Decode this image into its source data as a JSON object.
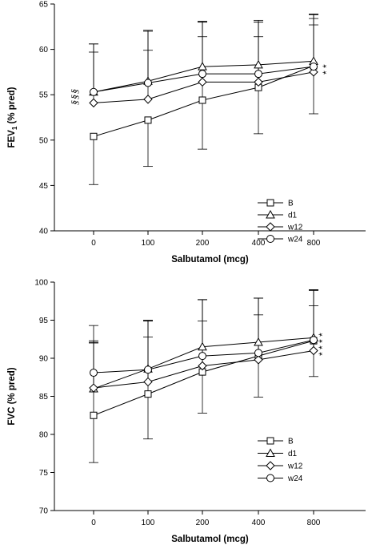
{
  "chart_data": [
    {
      "type": "line",
      "title": "",
      "xlabel": "Salbutamol (mcg)",
      "ylabel_main": "FEV",
      "ylabel_sub": "1",
      "ylabel_rest": " (% pred)",
      "categories": [
        "0",
        "100",
        "200",
        "400",
        "800"
      ],
      "ylim": [
        40,
        65
      ],
      "yticks": [
        40,
        45,
        50,
        55,
        60,
        65
      ],
      "legend_position": "lower-right",
      "series": [
        {
          "name": "B",
          "marker": "square",
          "values": [
            50.4,
            52.2,
            54.4,
            55.8,
            58.2
          ],
          "err_up": [
            0,
            0,
            8.6,
            7.2,
            5.2
          ],
          "err_down": [
            5.3,
            5.1,
            5.4,
            5.1,
            5.3
          ]
        },
        {
          "name": "d1",
          "marker": "triangle",
          "values": [
            55.3,
            56.5,
            58.1,
            58.3,
            58.7
          ],
          "err_up": [
            5.3,
            5.6,
            5.0,
            4.9,
            5.2
          ],
          "err_down": [
            0,
            0,
            0,
            0,
            0
          ]
        },
        {
          "name": "w12",
          "marker": "diamond",
          "values": [
            54.1,
            54.5,
            56.4,
            56.4,
            57.5
          ],
          "err_up": [
            5.6,
            5.4,
            5.0,
            5.0,
            5.2
          ],
          "err_down": [
            0,
            0,
            0,
            0,
            0
          ]
        },
        {
          "name": "w24",
          "marker": "circle",
          "values": [
            55.3,
            56.3,
            57.3,
            57.3,
            58.1
          ],
          "err_up": [
            5.3,
            5.7,
            5.7,
            5.7,
            5.7
          ],
          "err_down": [
            0,
            0,
            0,
            0,
            0
          ]
        }
      ],
      "annotations_left": [
        "§",
        "§",
        "§"
      ],
      "annotations_right": [
        "*",
        "*"
      ]
    },
    {
      "type": "line",
      "title": "",
      "xlabel": "Salbutamol (mcg)",
      "ylabel": "FVC (% pred)",
      "categories": [
        "0",
        "100",
        "200",
        "400",
        "800"
      ],
      "ylim": [
        70,
        100
      ],
      "yticks": [
        70,
        75,
        80,
        85,
        90,
        95,
        100
      ],
      "legend_position": "lower-right",
      "series": [
        {
          "name": "B",
          "marker": "square",
          "values": [
            82.5,
            85.3,
            88.2,
            90.3,
            92.3
          ],
          "err_up": [
            9.8,
            9.6,
            9.5,
            7.6,
            6.7
          ],
          "err_down": [
            6.2,
            5.9,
            5.4,
            5.4,
            4.7
          ]
        },
        {
          "name": "d1",
          "marker": "triangle",
          "values": [
            86.0,
            88.6,
            91.5,
            92.1,
            92.7
          ],
          "err_up": [
            6.1,
            6.4,
            6.2,
            5.8,
            6.2
          ],
          "err_down": [
            0,
            0,
            0,
            0,
            0
          ]
        },
        {
          "name": "w12",
          "marker": "diamond",
          "values": [
            86.1,
            86.9,
            89.0,
            89.8,
            91.0
          ],
          "err_up": [
            5.9,
            5.9,
            5.9,
            5.9,
            5.9
          ],
          "err_down": [
            0,
            0,
            0,
            0,
            0
          ]
        },
        {
          "name": "w24",
          "marker": "circle",
          "values": [
            88.1,
            88.5,
            90.3,
            90.7,
            92.4
          ],
          "err_up": [
            6.2,
            6.4,
            7.4,
            7.2,
            6.6
          ],
          "err_down": [
            0,
            0,
            0,
            0,
            0
          ]
        }
      ],
      "annotations_right": [
        "*",
        "*",
        "*",
        "*"
      ]
    }
  ]
}
